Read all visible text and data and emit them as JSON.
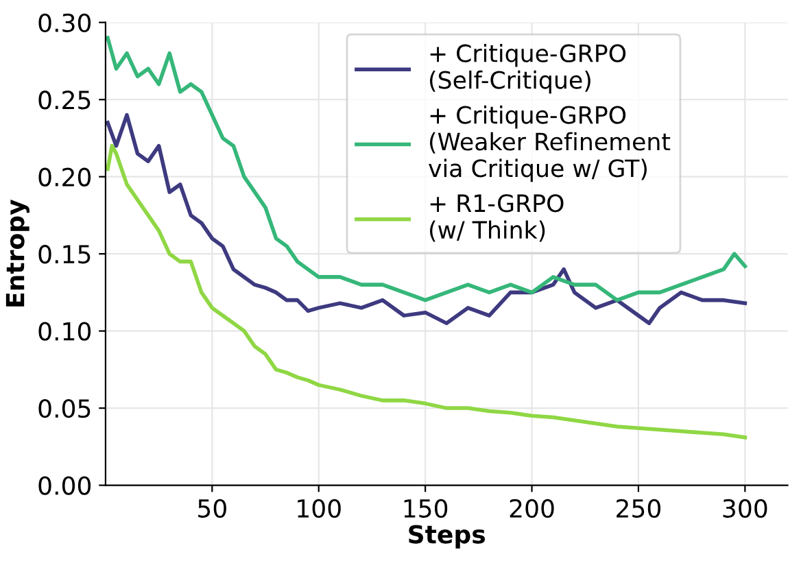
{
  "chart_data": {
    "type": "line",
    "xlabel": "Steps",
    "ylabel": "Entropy",
    "xlim": [
      0,
      320
    ],
    "ylim": [
      0,
      0.3
    ],
    "xticks": [
      50,
      100,
      150,
      200,
      250,
      300
    ],
    "yticks": [
      {
        "value": 0,
        "label": "0.00"
      },
      {
        "value": 0.05,
        "label": "0.05"
      },
      {
        "value": 0.1,
        "label": "0.10"
      },
      {
        "value": 0.15,
        "label": "0.15"
      },
      {
        "value": 0.2,
        "label": "0.20"
      },
      {
        "value": 0.25,
        "label": "0.25"
      },
      {
        "value": 0.3,
        "label": "0.30"
      }
    ],
    "grid": true,
    "legend": "top right",
    "marker": "none",
    "line_style": "solid",
    "series": [
      {
        "name": "+ Critique-GRPO\n(Self-Critique)",
        "color": "#3e3a80",
        "x": [
          1,
          5,
          10,
          15,
          20,
          25,
          30,
          35,
          40,
          45,
          50,
          55,
          60,
          65,
          70,
          75,
          80,
          85,
          90,
          95,
          100,
          110,
          120,
          130,
          140,
          150,
          160,
          170,
          180,
          190,
          200,
          210,
          215,
          220,
          230,
          240,
          250,
          255,
          260,
          270,
          280,
          290,
          300
        ],
        "values": [
          0.235,
          0.22,
          0.24,
          0.215,
          0.21,
          0.22,
          0.19,
          0.195,
          0.175,
          0.17,
          0.16,
          0.155,
          0.14,
          0.135,
          0.13,
          0.128,
          0.125,
          0.12,
          0.12,
          0.113,
          0.115,
          0.118,
          0.115,
          0.12,
          0.11,
          0.112,
          0.105,
          0.115,
          0.11,
          0.125,
          0.125,
          0.13,
          0.14,
          0.125,
          0.115,
          0.12,
          0.11,
          0.105,
          0.115,
          0.125,
          0.12,
          0.12,
          0.118
        ]
      },
      {
        "name": "+ Critique-GRPO\n(Weaker Refinement\nvia Critique w/ GT)",
        "color": "#35b779",
        "x": [
          1,
          5,
          10,
          15,
          20,
          25,
          30,
          35,
          40,
          45,
          50,
          55,
          60,
          65,
          70,
          75,
          80,
          85,
          90,
          95,
          100,
          110,
          120,
          130,
          140,
          150,
          160,
          170,
          180,
          190,
          200,
          210,
          220,
          230,
          240,
          250,
          260,
          270,
          280,
          290,
          295,
          300
        ],
        "values": [
          0.29,
          0.27,
          0.28,
          0.265,
          0.27,
          0.26,
          0.28,
          0.255,
          0.26,
          0.255,
          0.24,
          0.225,
          0.22,
          0.2,
          0.19,
          0.18,
          0.16,
          0.155,
          0.145,
          0.14,
          0.135,
          0.135,
          0.13,
          0.13,
          0.125,
          0.12,
          0.125,
          0.13,
          0.125,
          0.13,
          0.125,
          0.135,
          0.13,
          0.13,
          0.12,
          0.125,
          0.125,
          0.13,
          0.135,
          0.14,
          0.15,
          0.142
        ]
      },
      {
        "name": "+ R1-GRPO\n(w/ Think)",
        "color": "#8fd744",
        "x": [
          1,
          3,
          5,
          10,
          15,
          20,
          25,
          30,
          35,
          40,
          45,
          50,
          55,
          60,
          65,
          70,
          75,
          80,
          85,
          90,
          95,
          100,
          110,
          120,
          130,
          140,
          150,
          160,
          170,
          180,
          190,
          200,
          210,
          220,
          230,
          240,
          250,
          260,
          270,
          280,
          290,
          300
        ],
        "values": [
          0.205,
          0.22,
          0.215,
          0.195,
          0.185,
          0.175,
          0.165,
          0.15,
          0.145,
          0.145,
          0.125,
          0.115,
          0.11,
          0.105,
          0.1,
          0.09,
          0.085,
          0.075,
          0.073,
          0.07,
          0.068,
          0.065,
          0.062,
          0.058,
          0.055,
          0.055,
          0.053,
          0.05,
          0.05,
          0.048,
          0.047,
          0.045,
          0.044,
          0.042,
          0.04,
          0.038,
          0.037,
          0.036,
          0.035,
          0.034,
          0.033,
          0.031
        ]
      }
    ]
  }
}
